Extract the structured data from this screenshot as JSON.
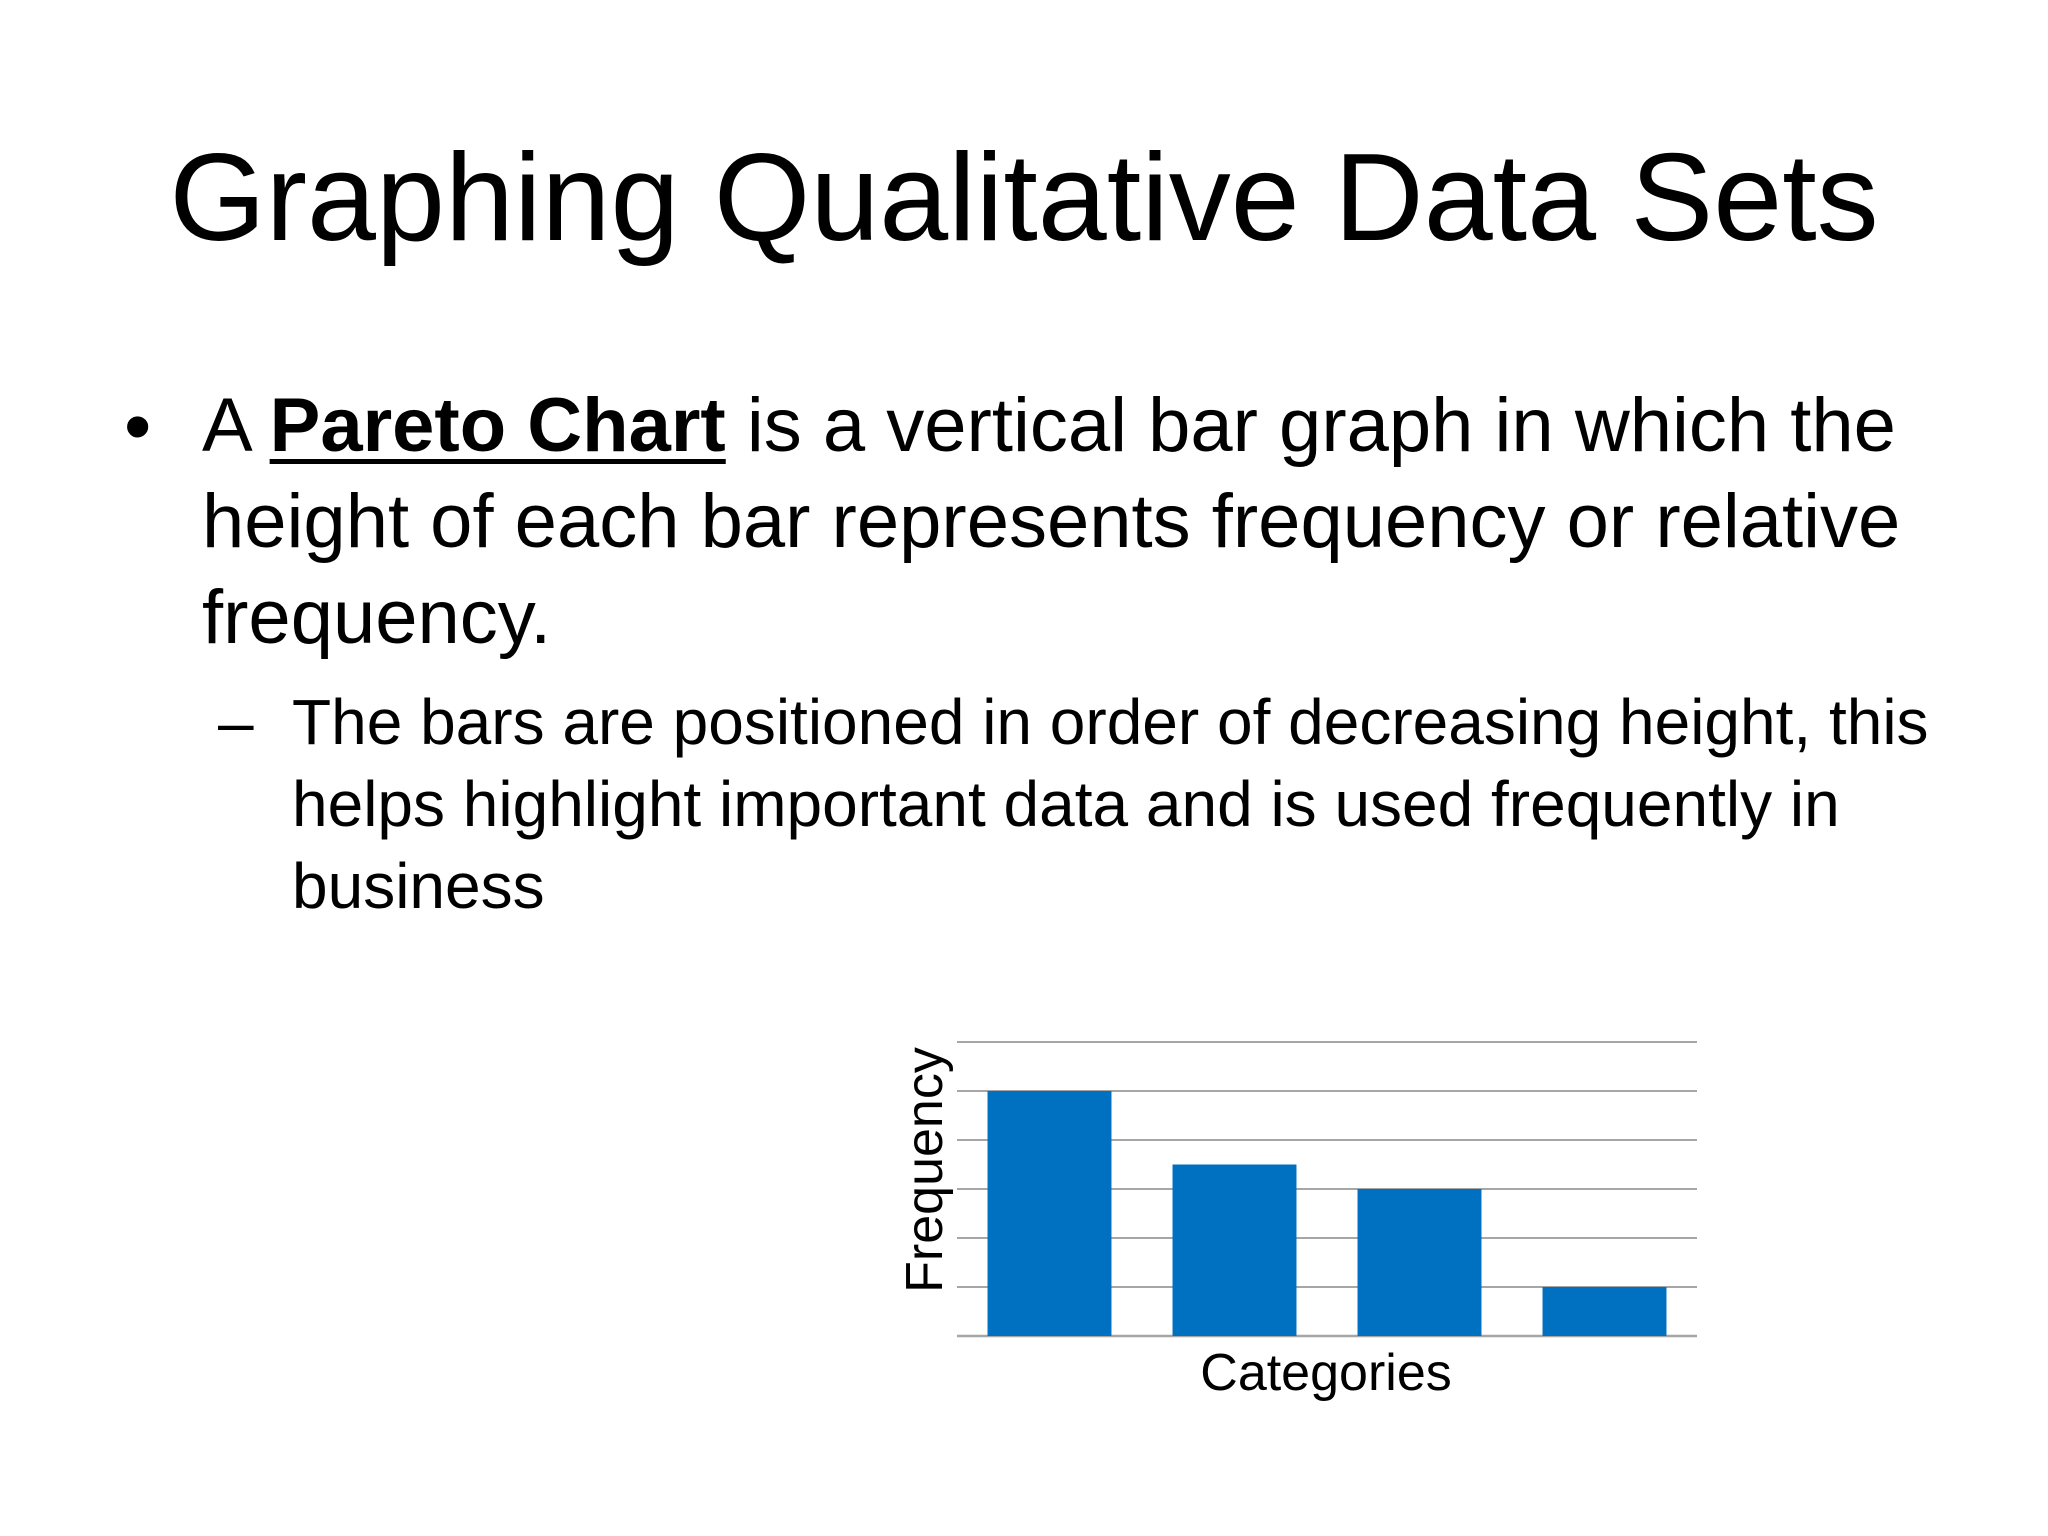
{
  "slide": {
    "title": "Graphing Qualitative Data Sets",
    "bullet": {
      "symbol": "•",
      "prefix": "A ",
      "term": "Pareto Chart",
      "suffix": " is a vertical bar graph in which the height of each bar represents frequency or relative frequency."
    },
    "sub_bullet": {
      "symbol": "–",
      "text": "The bars are positioned in order of decreasing height, this helps highlight important data and is used frequently in business"
    }
  },
  "chart_data": {
    "type": "bar",
    "categories": [
      "",
      "",
      "",
      ""
    ],
    "values": [
      5,
      3.5,
      3,
      1
    ],
    "title": "",
    "xlabel": "Categories",
    "ylabel": "Frequency",
    "ylim": [
      0,
      6
    ],
    "grid": true,
    "bar_color": "#0070C0",
    "grid_color": "#A6A6A6"
  }
}
